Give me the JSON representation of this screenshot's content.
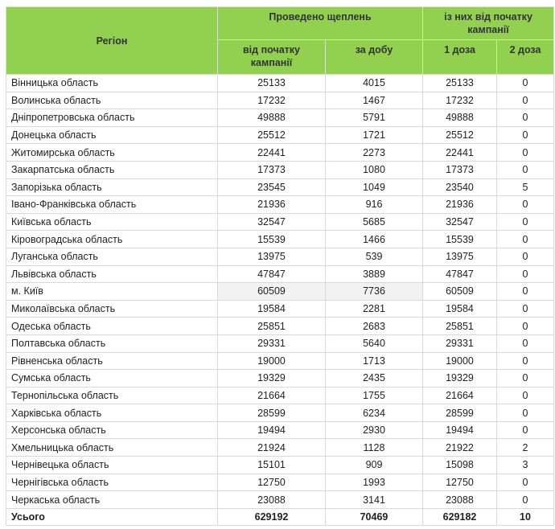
{
  "header": {
    "region": "Регіон",
    "group1": "Проведено щеплень",
    "group2": "із них від початку кампанії",
    "col_since_start": "від початку кампанії",
    "col_per_day": "за добу",
    "col_dose1": "1 доза",
    "col_dose2": "2 доза"
  },
  "rows": [
    [
      "Вінницька область",
      "25133",
      "4015",
      "25133",
      "0"
    ],
    [
      "Волинська область",
      "17232",
      "1467",
      "17232",
      "0"
    ],
    [
      "Дніпропетровська область",
      "49888",
      "5791",
      "49888",
      "0"
    ],
    [
      "Донецька область",
      "25512",
      "1721",
      "25512",
      "0"
    ],
    [
      "Житомирська область",
      "22441",
      "2273",
      "22441",
      "0"
    ],
    [
      "Закарпатська область",
      "17373",
      "1080",
      "17373",
      "0"
    ],
    [
      "Запорізька область",
      "23545",
      "1049",
      "23540",
      "5"
    ],
    [
      "Івано-Франківська область",
      "21936",
      "916",
      "21936",
      "0"
    ],
    [
      "Київська область",
      "32547",
      "5685",
      "32547",
      "0"
    ],
    [
      "Кіровоградська область",
      "15539",
      "1466",
      "15539",
      "0"
    ],
    [
      "Луганська область",
      "13975",
      "539",
      "13975",
      "0"
    ],
    [
      "Львівська область",
      "47847",
      "3889",
      "47847",
      "0"
    ],
    [
      "м. Київ",
      "60509",
      "7736",
      "60509",
      "0"
    ],
    [
      "Миколаївська область",
      "19584",
      "2281",
      "19584",
      "0"
    ],
    [
      "Одеська область",
      "25851",
      "2683",
      "25851",
      "0"
    ],
    [
      "Полтавська область",
      "29331",
      "5640",
      "29331",
      "0"
    ],
    [
      "Рівненська область",
      "19000",
      "1713",
      "19000",
      "0"
    ],
    [
      "Сумська область",
      "19329",
      "2435",
      "19329",
      "0"
    ],
    [
      "Тернопільська область",
      "21664",
      "1755",
      "21664",
      "0"
    ],
    [
      "Харківська область",
      "28599",
      "6234",
      "28599",
      "0"
    ],
    [
      "Херсонська область",
      "19494",
      "2930",
      "19494",
      "0"
    ],
    [
      "Хмельницька область",
      "21924",
      "1128",
      "21922",
      "2"
    ],
    [
      "Чернівецька область",
      "15101",
      "909",
      "15098",
      "3"
    ],
    [
      "Чернігівська область",
      "12750",
      "1993",
      "12750",
      "0"
    ],
    [
      "Черкаська область",
      "23088",
      "3141",
      "23088",
      "0"
    ]
  ],
  "total": [
    "Усього",
    "629192",
    "70469",
    "629182",
    "10"
  ],
  "colors": {
    "header_bg": "#92d050"
  }
}
